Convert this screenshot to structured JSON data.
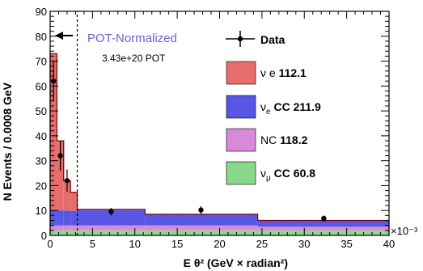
{
  "chart_data": {
    "type": "bar",
    "subtype": "stacked-histogram-with-data-points",
    "xlabel": "E θ² (GeV × radian²)",
    "ylabel": "N Events / 0.0008 GeV",
    "x_multiplier": "×10⁻³",
    "xlim": [
      0,
      40
    ],
    "ylim": [
      0,
      90
    ],
    "x_ticks": [
      "0",
      "5",
      "10",
      "15",
      "20",
      "25",
      "30",
      "35",
      "40"
    ],
    "y_ticks": [
      "0",
      "10",
      "20",
      "30",
      "40",
      "50",
      "60",
      "70",
      "80",
      "90"
    ],
    "bin_edges": [
      0,
      0.8,
      1.6,
      2.4,
      3.2,
      11.2,
      24.5,
      40
    ],
    "series": [
      {
        "name": "ν_μ CC",
        "label": "ν",
        "sub": "μ",
        "suffix": " CC",
        "total": "60.8",
        "color": "#8fe08f",
        "values": [
          2,
          2,
          2,
          2,
          2,
          2,
          2
        ]
      },
      {
        "name": "NC",
        "label": "NC",
        "sub": "",
        "suffix": "",
        "total": "118.2",
        "color": "#e08fe0",
        "values": [
          2,
          2,
          2,
          2,
          2,
          2,
          1.5
        ]
      },
      {
        "name": "ν_e CC",
        "label": "ν",
        "sub": "e",
        "suffix": " CC",
        "total": "211.9",
        "color": "#5a5aee",
        "values": [
          6,
          6,
          6,
          5.8,
          6.2,
          4.5,
          2.5
        ]
      },
      {
        "name": "ν e",
        "label": "ν e",
        "sub": "",
        "suffix": "",
        "total": "112.1",
        "color": "#f07070",
        "values": [
          63,
          28,
          12,
          7.5,
          0.3,
          0,
          0
        ]
      }
    ],
    "data_points": {
      "name": "Data",
      "x": [
        0.4,
        1.2,
        2.0,
        7.2,
        17.8,
        32.3
      ],
      "y": [
        62,
        32,
        22,
        9.5,
        10.2,
        6.8
      ],
      "yerr": [
        8,
        6,
        4.5,
        1.5,
        1.5,
        1.2
      ]
    },
    "cut_line_x": 3.2,
    "annotation": {
      "text": "POT-Normalized",
      "subtext": "3.43e+20 POT"
    },
    "legend_title": "Data",
    "legend_position": "top-right"
  }
}
